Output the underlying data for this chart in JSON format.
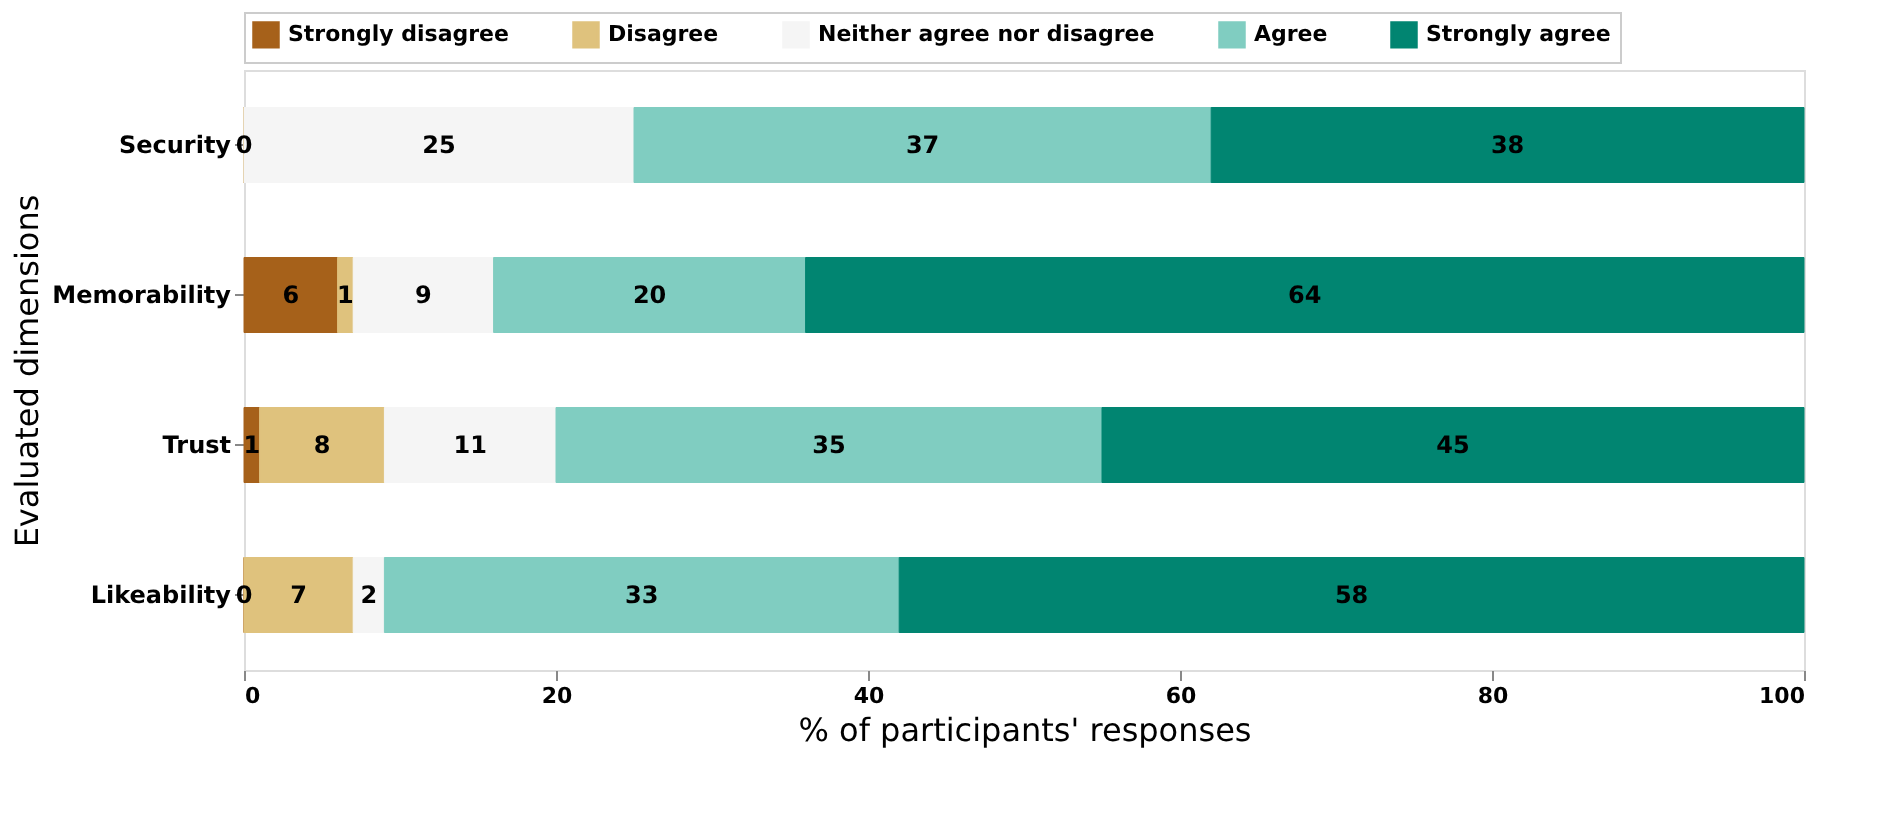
{
  "chart_data": {
    "type": "bar",
    "orientation": "horizontal",
    "stacked": true,
    "categories": [
      "Security",
      "Memorability",
      "Trust",
      "Likeability"
    ],
    "series": [
      {
        "name": "Strongly disagree",
        "color": "#a6611a",
        "values": [
          0,
          6,
          1,
          0
        ],
        "value_labels": [
          "0",
          "6",
          "1",
          "0"
        ]
      },
      {
        "name": "Disagree",
        "color": "#dfc27d",
        "values": [
          0,
          1,
          8,
          7
        ],
        "value_labels": [
          null,
          "1",
          "8",
          "7"
        ]
      },
      {
        "name": "Neither agree nor disagree",
        "color": "#f5f5f5",
        "values": [
          25,
          9,
          11,
          2
        ],
        "value_labels": [
          "25",
          "9",
          "11",
          "2"
        ]
      },
      {
        "name": "Agree",
        "color": "#80cdc1",
        "values": [
          37,
          20,
          35,
          33
        ],
        "value_labels": [
          "37",
          "20",
          "35",
          "33"
        ]
      },
      {
        "name": "Strongly agree",
        "color": "#018571",
        "values": [
          38,
          64,
          45,
          58
        ],
        "value_labels": [
          "38",
          "64",
          "45",
          "58"
        ]
      }
    ],
    "xlim": [
      0,
      100
    ],
    "xticks": [
      0,
      20,
      40,
      60,
      80,
      100
    ],
    "xlabel": "% of participants' responses",
    "ylabel": "Evaluated dimensions",
    "legend": "top",
    "grid": false
  }
}
